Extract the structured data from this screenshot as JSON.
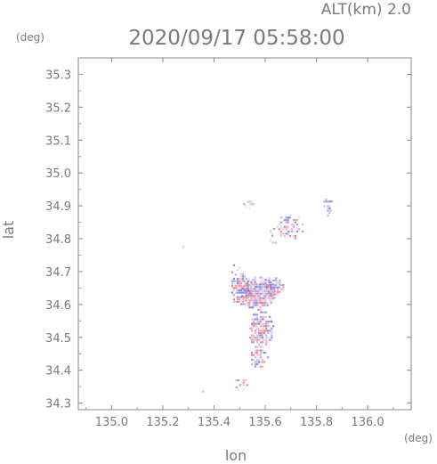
{
  "chart_data": {
    "type": "heatmap",
    "title": "2020/09/17 05:58:00",
    "subtitle": "ALT(km) 2.0",
    "xlabel": "lon",
    "ylabel": "lat",
    "xunit": "(deg)",
    "yunit": "(deg)",
    "xlim": [
      134.87,
      136.17
    ],
    "ylim": [
      34.28,
      35.35
    ],
    "xticks": [
      135.0,
      135.2,
      135.4,
      135.6,
      135.8,
      136.0
    ],
    "yticks": [
      34.3,
      34.4,
      34.5,
      34.6,
      34.7,
      34.8,
      34.9,
      35.0,
      35.1,
      35.2,
      35.3
    ],
    "grid": false,
    "colors": {
      "positive": "#e8606a",
      "negative": "#5a6ae6",
      "axis": "#888888"
    },
    "clusters": [
      {
        "lon": 135.57,
        "lat": 34.63,
        "rlon": 0.07,
        "rlat": 0.05,
        "density": 1.0
      },
      {
        "lon": 135.5,
        "lat": 34.64,
        "rlon": 0.04,
        "rlat": 0.05,
        "density": 0.9
      },
      {
        "lon": 135.63,
        "lat": 34.65,
        "rlon": 0.04,
        "rlat": 0.03,
        "density": 0.9
      },
      {
        "lon": 135.58,
        "lat": 34.52,
        "rlon": 0.05,
        "rlat": 0.06,
        "density": 0.85
      },
      {
        "lon": 135.57,
        "lat": 34.43,
        "rlon": 0.04,
        "rlat": 0.03,
        "density": 0.7
      },
      {
        "lon": 135.69,
        "lat": 34.83,
        "rlon": 0.06,
        "rlat": 0.04,
        "density": 0.5
      },
      {
        "lon": 135.84,
        "lat": 34.89,
        "rlon": 0.02,
        "rlat": 0.03,
        "density": 0.55
      },
      {
        "lon": 135.63,
        "lat": 34.8,
        "rlon": 0.02,
        "rlat": 0.03,
        "density": 0.4
      },
      {
        "lon": 135.53,
        "lat": 34.9,
        "rlon": 0.03,
        "rlat": 0.02,
        "density": 0.3
      },
      {
        "lon": 135.5,
        "lat": 34.35,
        "rlon": 0.03,
        "rlat": 0.02,
        "density": 0.45
      },
      {
        "lon": 135.28,
        "lat": 34.765,
        "rlon": 0.01,
        "rlat": 0.008,
        "density": 0.6
      },
      {
        "lon": 135.35,
        "lat": 34.325,
        "rlon": 0.01,
        "rlat": 0.008,
        "density": 0.6
      },
      {
        "lon": 135.48,
        "lat": 34.7,
        "rlon": 0.02,
        "rlat": 0.02,
        "density": 0.3
      }
    ]
  }
}
